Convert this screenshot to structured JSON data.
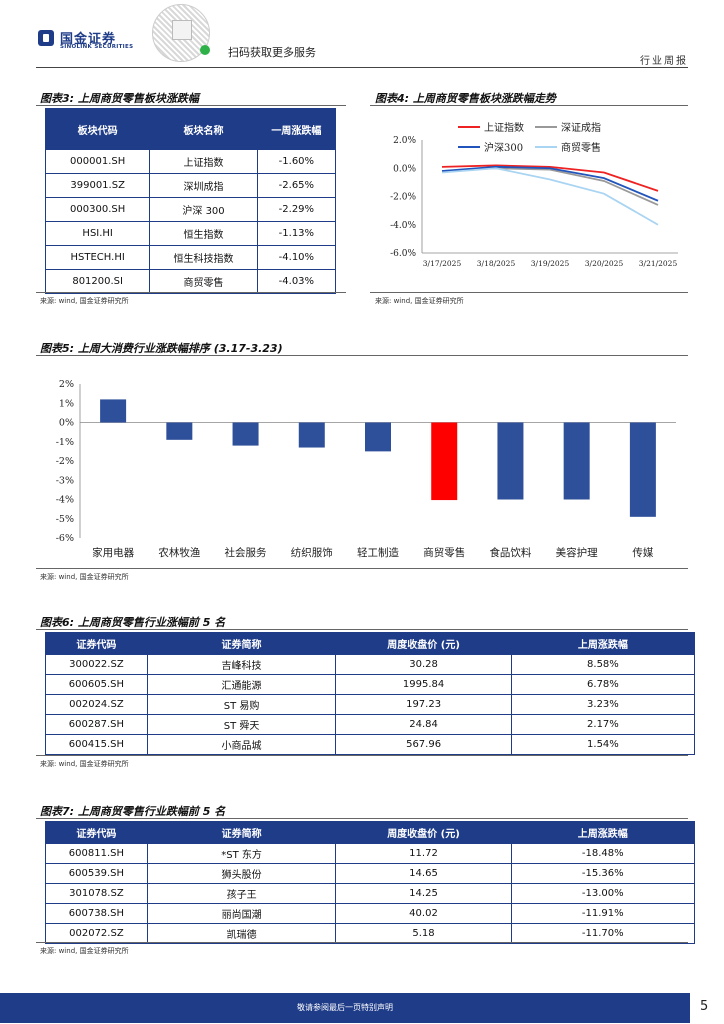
{
  "header": {
    "logo_cn": "国金证券",
    "logo_en": "SINOLINK SECURITIES",
    "scan_text": "扫码获取更多服务",
    "section": "行业周报"
  },
  "fig3": {
    "title": "图表3: 上周商贸零售板块涨跌幅",
    "headers": [
      "板块代码",
      "板块名称",
      "一周涨跌幅"
    ],
    "rows": [
      [
        "000001.SH",
        "上证指数",
        "-1.60%"
      ],
      [
        "399001.SZ",
        "深圳成指",
        "-2.65%"
      ],
      [
        "000300.SH",
        "沪深 300",
        "-2.29%"
      ],
      [
        "HSI.HI",
        "恒生指数",
        "-1.13%"
      ],
      [
        "HSTECH.HI",
        "恒生科技指数",
        "-4.10%"
      ],
      [
        "801200.SI",
        "商贸零售",
        "-4.03%"
      ]
    ],
    "source": "来源: wind, 国金证券研究所"
  },
  "fig4": {
    "title": "图表4: 上周商贸零售板块涨跌幅走势",
    "source": "来源: wind, 国金证券研究所"
  },
  "fig5": {
    "title": "图表5: 上周大消费行业涨跌幅排序 (3.17-3.23)",
    "source": "来源: wind, 国金证券研究所"
  },
  "fig6": {
    "title": "图表6: 上周商贸零售行业涨幅前 5 名",
    "headers": [
      "证券代码",
      "证券简称",
      "周度收盘价 (元)",
      "上周涨跌幅"
    ],
    "rows": [
      [
        "300022.SZ",
        "吉峰科技",
        "30.28",
        "8.58%"
      ],
      [
        "600605.SH",
        "汇通能源",
        "1995.84",
        "6.78%"
      ],
      [
        "002024.SZ",
        "ST 易购",
        "197.23",
        "3.23%"
      ],
      [
        "600287.SH",
        "ST 舜天",
        "24.84",
        "2.17%"
      ],
      [
        "600415.SH",
        "小商品城",
        "567.96",
        "1.54%"
      ]
    ],
    "source": "来源: wind, 国金证券研究所"
  },
  "fig7": {
    "title": "图表7: 上周商贸零售行业跌幅前 5 名",
    "headers": [
      "证券代码",
      "证券简称",
      "周度收盘价 (元)",
      "上周涨跌幅"
    ],
    "rows": [
      [
        "600811.SH",
        "*ST 东方",
        "11.72",
        "-18.48%"
      ],
      [
        "600539.SH",
        "狮头股份",
        "14.65",
        "-15.36%"
      ],
      [
        "301078.SZ",
        "孩子王",
        "14.25",
        "-13.00%"
      ],
      [
        "600738.SH",
        "丽尚国潮",
        "40.02",
        "-11.91%"
      ],
      [
        "002072.SZ",
        "凯瑞德",
        "5.18",
        "-11.70%"
      ]
    ],
    "source": "来源: wind, 国金证券研究所"
  },
  "footer": {
    "text": "敬请参阅最后一页特别声明",
    "page": "5"
  },
  "colors": {
    "brand": "#1f3c88",
    "bar": "#2e4f9a",
    "bar_highlight": "#ff0000"
  },
  "chart_data": [
    {
      "type": "line",
      "x": [
        "3/17/2025",
        "3/18/2025",
        "3/19/2025",
        "3/20/2025",
        "3/21/2025"
      ],
      "series": [
        {
          "name": "上证指数",
          "color": "#ee2222",
          "values": [
            0.1,
            0.2,
            0.1,
            -0.3,
            -1.6
          ]
        },
        {
          "name": "深证成指",
          "color": "#999999",
          "values": [
            -0.2,
            0.0,
            -0.1,
            -0.9,
            -2.6
          ]
        },
        {
          "name": "沪深300",
          "color": "#2255bb",
          "values": [
            -0.2,
            0.1,
            0.0,
            -0.7,
            -2.3
          ]
        },
        {
          "name": "商贸零售",
          "color": "#a9d4f2",
          "values": [
            -0.3,
            0.0,
            -0.8,
            -1.8,
            -4.0
          ]
        }
      ],
      "yticks": [
        "2.0%",
        "0.0%",
        "-2.0%",
        "-4.0%",
        "-6.0%"
      ],
      "ylim": [
        -6,
        2
      ],
      "legend": "top"
    },
    {
      "type": "bar",
      "categories": [
        "家用电器",
        "农林牧渔",
        "社会服务",
        "纺织服饰",
        "轻工制造",
        "商贸零售",
        "食品饮料",
        "美容护理",
        "传媒"
      ],
      "values": [
        1.2,
        -0.9,
        -1.2,
        -1.3,
        -1.5,
        -4.03,
        -4.0,
        -4.0,
        -4.9
      ],
      "highlight": "商贸零售",
      "yticks": [
        "2%",
        "1%",
        "0%",
        "-1%",
        "-2%",
        "-3%",
        "-4%",
        "-5%",
        "-6%"
      ],
      "ylim": [
        -6,
        2
      ]
    }
  ]
}
